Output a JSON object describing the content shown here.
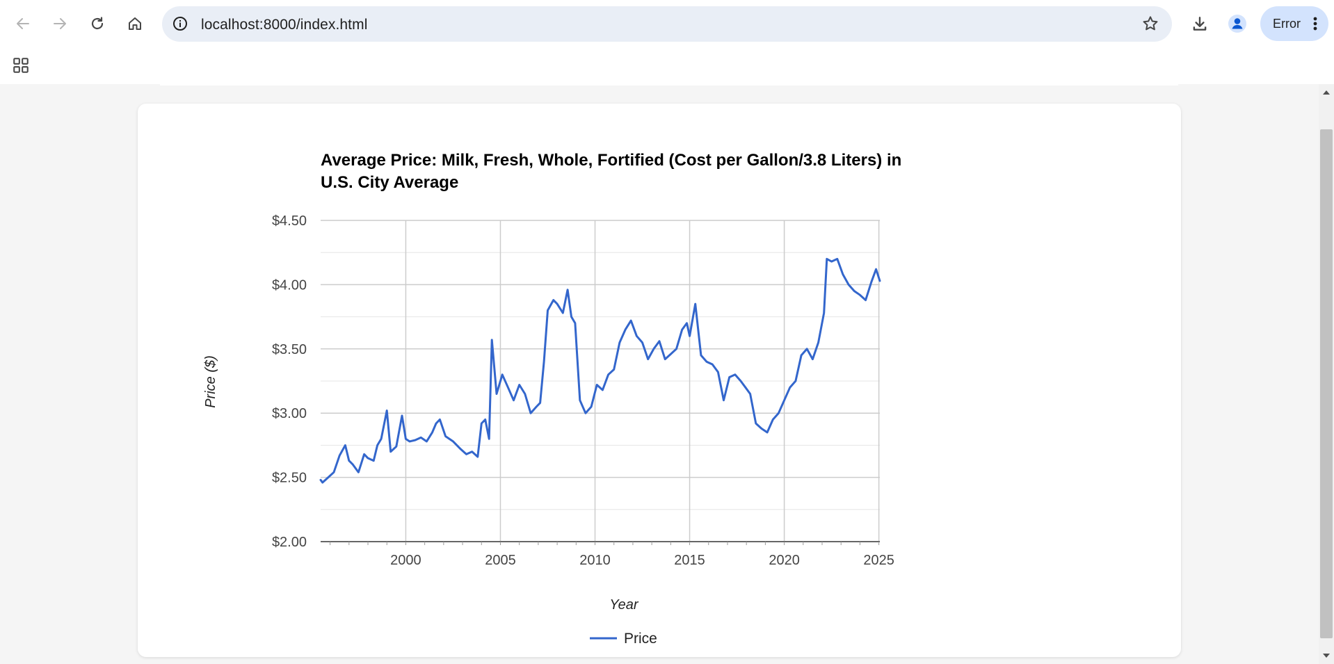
{
  "browser": {
    "url": "localhost:8000/index.html",
    "error_label": "Error",
    "icons": [
      "back-arrow-icon",
      "forward-arrow-icon",
      "reload-icon",
      "home-icon",
      "info-icon",
      "star-icon",
      "download-icon",
      "profile-icon",
      "more-vert-icon",
      "apps-grid-icon"
    ]
  },
  "colors": {
    "series": "#3366cc",
    "grid": "#cccccc",
    "baseline": "#333333"
  },
  "chart_data": {
    "type": "line",
    "title_lines": [
      "Average Price: Milk, Fresh, Whole, Fortified (Cost per Gallon/3.8 Liters) in",
      "U.S. City Average"
    ],
    "xlabel": "Year",
    "ylabel": "Price ($)",
    "xlim": [
      1995.5,
      2025.05
    ],
    "ylim": [
      2.0,
      4.5
    ],
    "x_ticks": [
      2000,
      2005,
      2010,
      2015,
      2020,
      2025
    ],
    "y_ticks": [
      2.0,
      2.5,
      3.0,
      3.5,
      4.0,
      4.5
    ],
    "y_tick_labels": [
      "$2.00",
      "$2.50",
      "$3.00",
      "$3.50",
      "$4.00",
      "$4.50"
    ],
    "x_tick_labels": [
      "2000",
      "2005",
      "2010",
      "2015",
      "2020",
      "2025"
    ],
    "legend": "Price",
    "legend_position": "bottom",
    "grid": true,
    "series": [
      {
        "name": "Price",
        "x": [
          1995.5,
          1995.6,
          1995.9,
          1996.2,
          1996.5,
          1996.8,
          1997.0,
          1997.2,
          1997.5,
          1997.8,
          1998.0,
          1998.3,
          1998.5,
          1998.7,
          1999.0,
          1999.2,
          1999.35,
          1999.5,
          1999.8,
          2000.0,
          2000.2,
          2000.5,
          2000.8,
          2001.1,
          2001.4,
          2001.6,
          2001.8,
          2002.1,
          2002.5,
          2002.9,
          2003.2,
          2003.5,
          2003.8,
          2004.0,
          2004.2,
          2004.4,
          2004.55,
          2004.8,
          2005.1,
          2005.4,
          2005.7,
          2006.0,
          2006.3,
          2006.6,
          2006.9,
          2007.1,
          2007.3,
          2007.5,
          2007.8,
          2008.0,
          2008.3,
          2008.55,
          2008.75,
          2008.95,
          2009.2,
          2009.5,
          2009.8,
          2010.1,
          2010.4,
          2010.7,
          2011.0,
          2011.3,
          2011.6,
          2011.9,
          2012.2,
          2012.5,
          2012.8,
          2013.1,
          2013.4,
          2013.7,
          2014.0,
          2014.3,
          2014.6,
          2014.85,
          2015.0,
          2015.3,
          2015.6,
          2015.9,
          2016.2,
          2016.5,
          2016.8,
          2017.1,
          2017.4,
          2017.7,
          2017.95,
          2018.2,
          2018.5,
          2018.8,
          2019.1,
          2019.4,
          2019.7,
          2020.0,
          2020.3,
          2020.6,
          2020.9,
          2021.2,
          2021.5,
          2021.8,
          2022.1,
          2022.25,
          2022.5,
          2022.8,
          2023.1,
          2023.4,
          2023.7,
          2024.0,
          2024.3,
          2024.6,
          2024.85,
          2025.05
        ],
        "y": [
          2.48,
          2.46,
          2.5,
          2.54,
          2.67,
          2.75,
          2.63,
          2.6,
          2.54,
          2.68,
          2.65,
          2.63,
          2.75,
          2.8,
          3.02,
          2.7,
          2.72,
          2.74,
          2.98,
          2.8,
          2.78,
          2.79,
          2.81,
          2.78,
          2.85,
          2.92,
          2.95,
          2.82,
          2.78,
          2.72,
          2.68,
          2.7,
          2.66,
          2.92,
          2.95,
          2.8,
          3.57,
          3.15,
          3.3,
          3.2,
          3.1,
          3.22,
          3.15,
          3.0,
          3.05,
          3.08,
          3.4,
          3.8,
          3.88,
          3.85,
          3.78,
          3.96,
          3.75,
          3.7,
          3.1,
          3.0,
          3.05,
          3.22,
          3.18,
          3.3,
          3.34,
          3.55,
          3.65,
          3.72,
          3.6,
          3.55,
          3.42,
          3.5,
          3.56,
          3.42,
          3.46,
          3.5,
          3.65,
          3.7,
          3.6,
          3.85,
          3.45,
          3.4,
          3.38,
          3.32,
          3.1,
          3.28,
          3.3,
          3.25,
          3.2,
          3.15,
          2.92,
          2.88,
          2.85,
          2.95,
          3.0,
          3.1,
          3.2,
          3.25,
          3.45,
          3.5,
          3.42,
          3.55,
          3.78,
          4.2,
          4.18,
          4.2,
          4.08,
          4.0,
          3.95,
          3.92,
          3.88,
          4.02,
          4.12,
          4.03
        ]
      }
    ]
  }
}
